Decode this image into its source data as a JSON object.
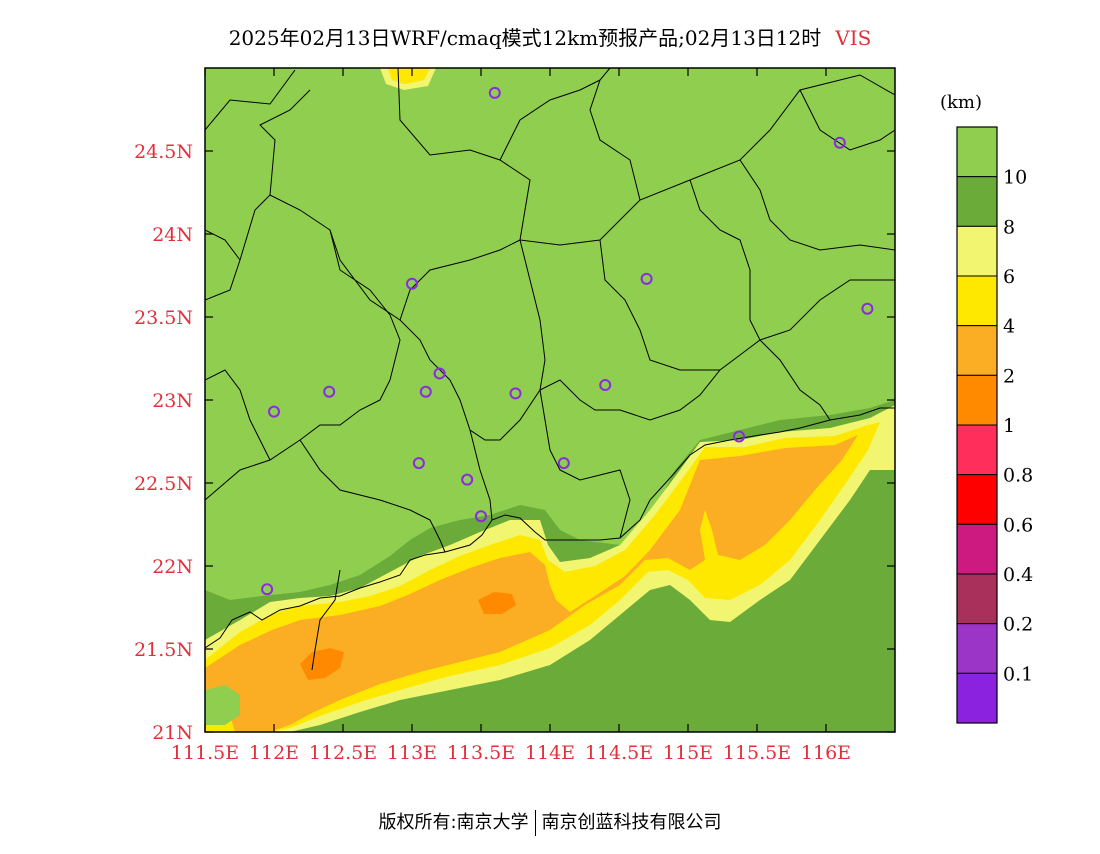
{
  "title": "2025年02月13日WRF/cmaq模式12km预报产品;02月13日12时",
  "variable": "VIS",
  "unit_label": "(km)",
  "footer": {
    "left": "版权所有:南京大学",
    "right": "南京创蓝科技有限公司"
  },
  "map": {
    "lon_ticks": [
      "111.5E",
      "112E",
      "112.5E",
      "113E",
      "113.5E",
      "114E",
      "114.5E",
      "115E",
      "115.5E",
      "116E"
    ],
    "lat_ticks": [
      "24.5N",
      "24N",
      "23.5N",
      "23N",
      "22.5N",
      "22N",
      "21.5N",
      "21N"
    ],
    "lon_range": [
      111.5,
      116.5
    ],
    "lat_range": [
      21.0,
      25.0
    ],
    "station_markers_lonlat": [
      [
        113.6,
        24.85
      ],
      [
        116.1,
        24.55
      ],
      [
        113.0,
        23.7
      ],
      [
        114.7,
        23.73
      ],
      [
        116.3,
        23.55
      ],
      [
        112.0,
        22.93
      ],
      [
        112.4,
        23.05
      ],
      [
        113.1,
        23.05
      ],
      [
        113.2,
        23.16
      ],
      [
        113.75,
        23.04
      ],
      [
        114.4,
        23.09
      ],
      [
        113.05,
        22.62
      ],
      [
        113.4,
        22.52
      ],
      [
        114.1,
        22.62
      ],
      [
        115.37,
        22.78
      ],
      [
        113.5,
        22.3
      ],
      [
        111.95,
        21.86
      ]
    ],
    "marker_color": "#8a2be2"
  },
  "legend": {
    "bins": [
      {
        "color": "#8fce4f",
        "label": "10"
      },
      {
        "color": "#6aab3a",
        "label": "8"
      },
      {
        "color": "#f2f570",
        "label": "6"
      },
      {
        "color": "#ffe800",
        "label": "4"
      },
      {
        "color": "#fbae24",
        "label": "2"
      },
      {
        "color": "#ff8a00",
        "label": "1"
      },
      {
        "color": "#ff2e5a",
        "label": "0.8"
      },
      {
        "color": "#ff0000",
        "label": "0.6"
      },
      {
        "color": "#cc1a80",
        "label": "0.4"
      },
      {
        "color": "#a8305a",
        "label": "0.2"
      },
      {
        "color": "#9a35c8",
        "label": "0.1"
      },
      {
        "color": "#8a22e0",
        "label": ""
      }
    ]
  }
}
